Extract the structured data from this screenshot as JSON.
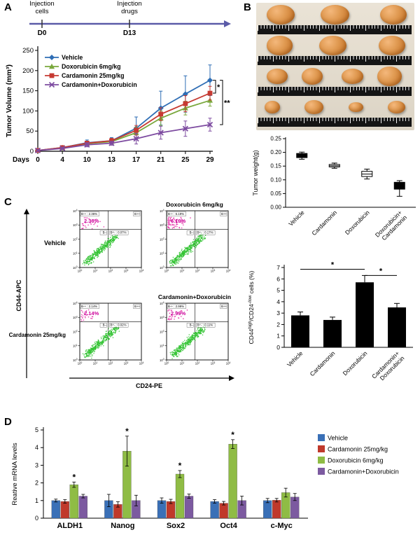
{
  "figure": {
    "panel_a": {
      "label": "A",
      "timeline": {
        "event1": "Injection\ncells",
        "event2": "Injection\ndrugs",
        "day1": "D0",
        "day2": "D13",
        "arrow_color": "#5b5ba8"
      }
    },
    "panel_b": {
      "label": "B",
      "photo": {
        "tumors_per_row": [
          3,
          3,
          4,
          4
        ]
      }
    },
    "panel_c": {
      "label": "C"
    },
    "panel_d": {
      "label": "D"
    }
  },
  "chart_data": [
    {
      "id": "tumor_volume",
      "panel": "A",
      "type": "line",
      "ylabel": "Tumor Volume (mm³)",
      "x_axis_label": "Days",
      "x": [
        0,
        4,
        10,
        13,
        17,
        21,
        25,
        29
      ],
      "ylim": [
        0,
        250
      ],
      "yticks": [
        0,
        50,
        100,
        150,
        200,
        250
      ],
      "series": [
        {
          "name": "Vehicle",
          "color": "#2f6eb5",
          "marker": "diamond",
          "values": [
            2,
            9,
            21,
            26,
            57,
            107,
            142,
            176
          ],
          "errors": [
            2,
            4,
            7,
            8,
            28,
            42,
            45,
            38
          ]
        },
        {
          "name": "Doxorubicin 6mg/kg",
          "color": "#7aa83d",
          "marker": "triangle",
          "values": [
            2,
            8,
            19,
            24,
            46,
            82,
            107,
            126
          ],
          "errors": [
            2,
            3,
            5,
            6,
            14,
            18,
            17,
            14
          ]
        },
        {
          "name": "Cardamonin 25mg/kg",
          "color": "#c63a32",
          "marker": "square",
          "values": [
            2,
            9,
            20,
            26,
            52,
            92,
            118,
            144
          ],
          "errors": [
            2,
            3,
            5,
            6,
            12,
            16,
            20,
            17
          ]
        },
        {
          "name": "Cardamonin+Doxorubicin",
          "color": "#7d4ba0",
          "marker": "x",
          "values": [
            2,
            7,
            16,
            20,
            31,
            46,
            56,
            66
          ],
          "errors": [
            2,
            3,
            5,
            5,
            13,
            16,
            19,
            16
          ]
        }
      ],
      "significance": [
        {
          "from": 0,
          "to": 2,
          "label": "*"
        },
        {
          "from": 0,
          "to": 3,
          "label": "**"
        }
      ]
    },
    {
      "id": "tumor_weight",
      "panel": "B",
      "type": "box",
      "ylabel": "Tumor weight(g)",
      "ylim": [
        0,
        0.25
      ],
      "yticks": [
        "0.00",
        "0.05",
        "0.10",
        "0.15",
        "0.20",
        "0.25"
      ],
      "categories": [
        "Vehicle",
        "Cardamonin",
        "Doxorubicin",
        "Doxorubicin+\nCardamonin"
      ],
      "boxes": [
        {
          "low": 0.175,
          "q1": 0.181,
          "median": 0.188,
          "q3": 0.196,
          "high": 0.201,
          "fill": "black"
        },
        {
          "low": 0.142,
          "q1": 0.147,
          "median": 0.151,
          "q3": 0.156,
          "high": 0.161,
          "fill": "white"
        },
        {
          "low": 0.103,
          "q1": 0.112,
          "median": 0.121,
          "q3": 0.131,
          "high": 0.139,
          "fill": "white"
        },
        {
          "low": 0.04,
          "q1": 0.066,
          "median": 0.078,
          "q3": 0.091,
          "high": 0.097,
          "fill": "black"
        }
      ]
    },
    {
      "id": "flow_cytometry",
      "panel": "C",
      "type": "scatter",
      "y_axis": "CD44-APC",
      "x_axis": "CD24-PE",
      "dot_colors": {
        "main_population": "#35c435",
        "cd44high_population": "#e83fae",
        "highlight_text": "#cc0099"
      },
      "plots": [
        {
          "title": "Vehicle",
          "upper_left_pct": 2.36,
          "lower_right_pct": 0.07,
          "highlight": "2.36%",
          "labels": {
            "upper_left": "B-+ : 2.36%",
            "upper_right": "B++",
            "lower_left": "B--",
            "lower_right": "B+- : 0.07%"
          }
        },
        {
          "title": "Doxorubicin 6mg/kg",
          "upper_left_pct": 6.19,
          "lower_right_pct": 0.17,
          "highlight": "6.19%",
          "labels": {
            "upper_left": "B-+ : 6.19%",
            "upper_right": "B++",
            "lower_left": "B--",
            "lower_right": "B+- : 0.17%"
          }
        },
        {
          "title": "Cardamonin 25mg/kg",
          "upper_left_pct": 2.14,
          "lower_right_pct": 0.02,
          "highlight": "2.14%",
          "labels": {
            "upper_left": "B-+ : 2.14%",
            "upper_right": "B++",
            "lower_left": "B--",
            "lower_right": "B+- : 0.02%"
          }
        },
        {
          "title": "Cardamonin+Doxorubicin",
          "upper_left_pct": 2.99,
          "lower_right_pct": 0.11,
          "highlight": "2.99%",
          "labels": {
            "upper_left": "B-+ : 2.99%",
            "upper_right": "B++",
            "lower_left": "B--",
            "lower_right": "B+- : 0.11%"
          }
        }
      ]
    },
    {
      "id": "cd44high_cd24low_cells",
      "panel": "C",
      "type": "bar",
      "ylabel_segments": [
        {
          "t": "CD44"
        },
        {
          "t": "high",
          "sup": true
        },
        {
          "t": "/CD24"
        },
        {
          "t": "-/low",
          "sup": true
        },
        {
          "t": " cells (%)"
        }
      ],
      "ylim": [
        0,
        7
      ],
      "yticks": [
        0,
        1,
        2,
        3,
        4,
        5,
        6,
        7
      ],
      "categories": [
        "Vehicle",
        "Cardamonin",
        "Doxorubicin",
        "Cardamonin+\nDoxorubicin"
      ],
      "values": [
        2.8,
        2.4,
        5.7,
        3.5
      ],
      "errors": [
        0.3,
        0.25,
        0.6,
        0.35
      ],
      "bar_color": "#000000",
      "significance": [
        {
          "from": 0,
          "to": 2,
          "label": "*"
        },
        {
          "from": 2,
          "to": 3,
          "label": "*"
        }
      ]
    },
    {
      "id": "stemness_mrna",
      "panel": "D",
      "type": "grouped_bar",
      "ylabel": "Reative mRNA levels",
      "ylim": [
        0,
        5
      ],
      "yticks": [
        0,
        1,
        2,
        3,
        4,
        5
      ],
      "categories": [
        "ALDH1",
        "Nanog",
        "Sox2",
        "Oct4",
        "c-Myc"
      ],
      "series": [
        {
          "name": "Vehicle",
          "color": "#3a70b7",
          "values": [
            1.0,
            1.0,
            1.0,
            0.95,
            1.0
          ],
          "errors": [
            0.08,
            0.35,
            0.15,
            0.1,
            0.12
          ]
        },
        {
          "name": "Cardamonin 25mg/kg",
          "color": "#c0392b",
          "values": [
            0.95,
            0.78,
            0.95,
            0.85,
            1.02
          ],
          "errors": [
            0.1,
            0.15,
            0.12,
            0.1,
            0.1
          ]
        },
        {
          "name": "Doxorubicin 6mg/kg",
          "color": "#8fbc45",
          "values": [
            1.9,
            3.8,
            2.5,
            4.2,
            1.45
          ],
          "errors": [
            0.15,
            0.85,
            0.2,
            0.25,
            0.25
          ]
        },
        {
          "name": "Cardamonin+Doxorubicin",
          "color": "#7c5aa0",
          "values": [
            1.25,
            1.0,
            1.25,
            1.0,
            1.2
          ],
          "errors": [
            0.1,
            0.3,
            0.12,
            0.25,
            0.2
          ]
        }
      ],
      "significance": {
        "series_index": 2,
        "categories": [
          0,
          1,
          2,
          3
        ],
        "label": "*"
      }
    }
  ]
}
